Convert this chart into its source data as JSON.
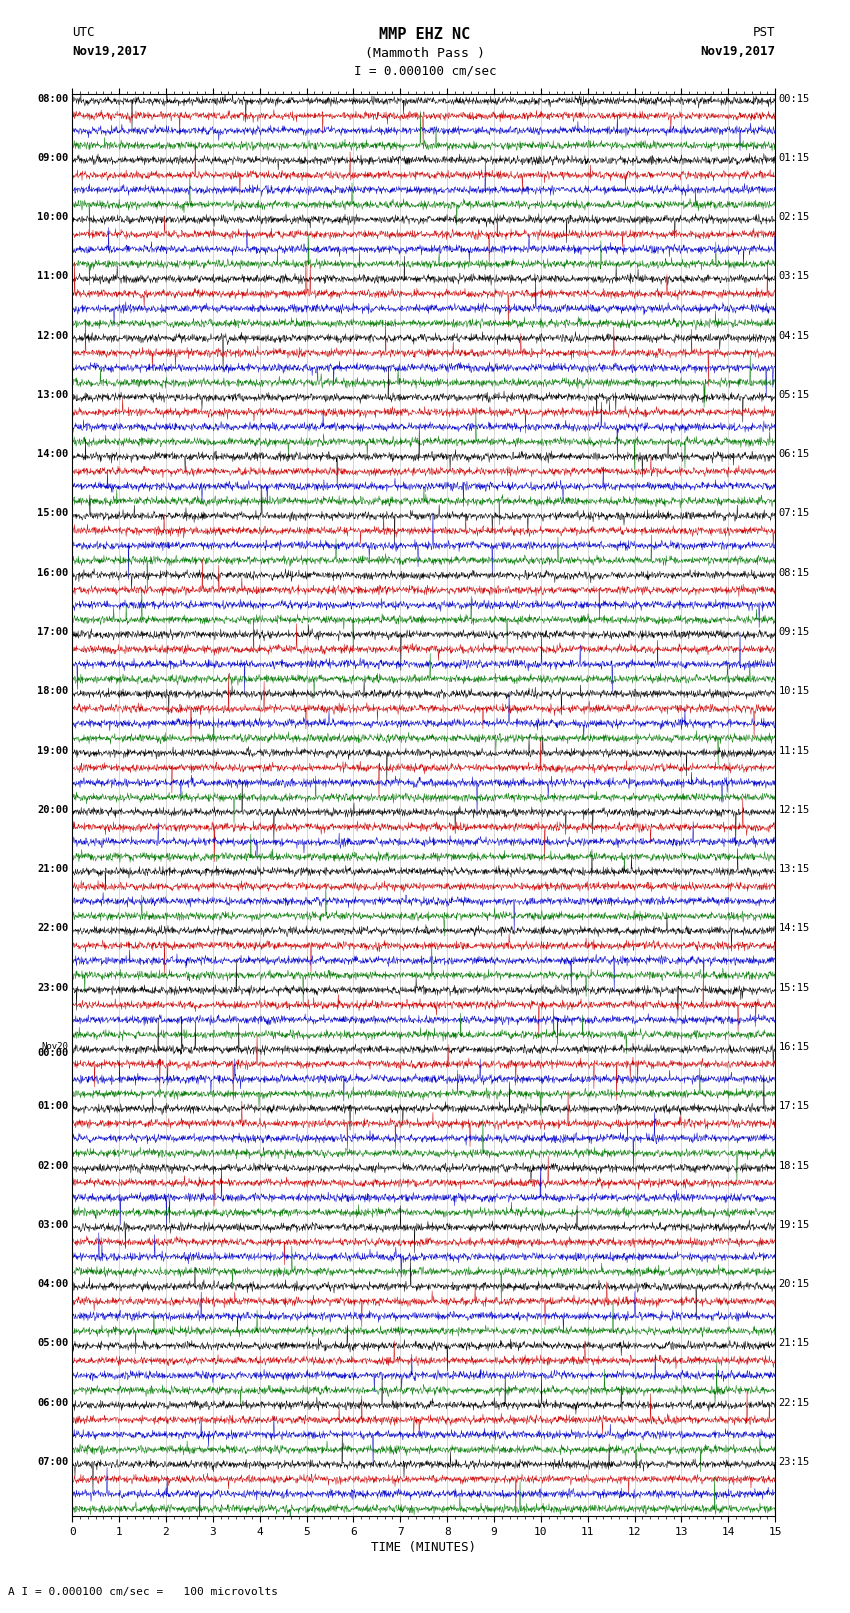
{
  "title_line1": "MMP EHZ NC",
  "title_line2": "(Mammoth Pass )",
  "scale_text": "I = 0.000100 cm/sec",
  "bottom_note": "A I = 0.000100 cm/sec =   100 microvolts",
  "utc_label": "UTC",
  "utc_date": "Nov19,2017",
  "pst_label": "PST",
  "pst_date": "Nov19,2017",
  "xlabel": "TIME (MINUTES)",
  "colors": [
    "#000000",
    "#cc0000",
    "#0000cc",
    "#007700"
  ],
  "background": "#ffffff",
  "num_hours": 24,
  "traces_per_hour": 4,
  "minutes": 15,
  "utc_hour_labels": [
    "08:00",
    "09:00",
    "10:00",
    "11:00",
    "12:00",
    "13:00",
    "14:00",
    "15:00",
    "16:00",
    "17:00",
    "18:00",
    "19:00",
    "20:00",
    "21:00",
    "22:00",
    "23:00",
    "Nov20\n00:00",
    "01:00",
    "02:00",
    "03:00",
    "04:00",
    "05:00",
    "06:00",
    "07:00"
  ],
  "pst_hour_labels": [
    "00:15",
    "01:15",
    "02:15",
    "03:15",
    "04:15",
    "05:15",
    "06:15",
    "07:15",
    "08:15",
    "09:15",
    "10:15",
    "11:15",
    "12:15",
    "13:15",
    "14:15",
    "15:15",
    "16:15",
    "17:15",
    "18:15",
    "19:15",
    "20:15",
    "21:15",
    "22:15",
    "23:15"
  ],
  "noise_scale": 0.28,
  "spike_probability": 0.0025,
  "spike_scale": 2.0,
  "seed": 12345,
  "figwidth": 8.5,
  "figheight": 16.13,
  "dpi": 100
}
